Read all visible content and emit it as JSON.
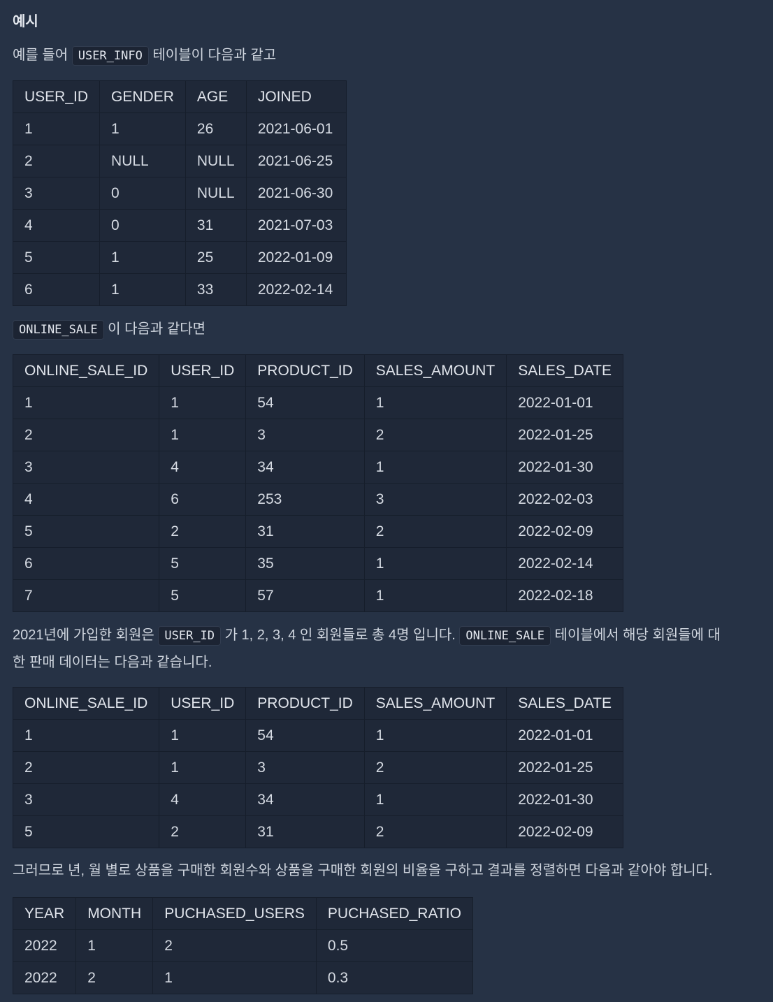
{
  "heading": "예시",
  "intro": {
    "prefix": "예를 들어 ",
    "code": "USER_INFO",
    "suffix": " 테이블이 다음과 같고"
  },
  "user_info": {
    "headers": [
      "USER_ID",
      "GENDER",
      "AGE",
      "JOINED"
    ],
    "rows": [
      [
        "1",
        "1",
        "26",
        "2021-06-01"
      ],
      [
        "2",
        "NULL",
        "NULL",
        "2021-06-25"
      ],
      [
        "3",
        "0",
        "NULL",
        "2021-06-30"
      ],
      [
        "4",
        "0",
        "31",
        "2021-07-03"
      ],
      [
        "5",
        "1",
        "25",
        "2022-01-09"
      ],
      [
        "6",
        "1",
        "33",
        "2022-02-14"
      ]
    ]
  },
  "intro2": {
    "code": "ONLINE_SALE",
    "suffix": " 이 다음과 같다면"
  },
  "online_sale": {
    "headers": [
      "ONLINE_SALE_ID",
      "USER_ID",
      "PRODUCT_ID",
      "SALES_AMOUNT",
      "SALES_DATE"
    ],
    "rows": [
      [
        "1",
        "1",
        "54",
        "1",
        "2022-01-01"
      ],
      [
        "2",
        "1",
        "3",
        "2",
        "2022-01-25"
      ],
      [
        "3",
        "4",
        "34",
        "1",
        "2022-01-30"
      ],
      [
        "4",
        "6",
        "253",
        "3",
        "2022-02-03"
      ],
      [
        "5",
        "2",
        "31",
        "2",
        "2022-02-09"
      ],
      [
        "6",
        "5",
        "35",
        "1",
        "2022-02-14"
      ],
      [
        "7",
        "5",
        "57",
        "1",
        "2022-02-18"
      ]
    ]
  },
  "explain": {
    "t1": "2021년에 가입한 회원은 ",
    "code1": "USER_ID",
    "t2": " 가 1, 2, 3, 4 인 회원들로 총 4명 입니다. ",
    "code2": "ONLINE_SALE",
    "t3": " 테이블에서 해당 회원들에 대",
    "line2": "한 판매 데이터는 다음과 같습니다."
  },
  "filtered_sale": {
    "headers": [
      "ONLINE_SALE_ID",
      "USER_ID",
      "PRODUCT_ID",
      "SALES_AMOUNT",
      "SALES_DATE"
    ],
    "rows": [
      [
        "1",
        "1",
        "54",
        "1",
        "2022-01-01"
      ],
      [
        "2",
        "1",
        "3",
        "2",
        "2022-01-25"
      ],
      [
        "3",
        "4",
        "34",
        "1",
        "2022-01-30"
      ],
      [
        "5",
        "2",
        "31",
        "2",
        "2022-02-09"
      ]
    ]
  },
  "conclusion": "그러므로 년, 월 별로 상품을 구매한 회원수와 상품을 구매한 회원의 비율을 구하고 결과를 정렬하면 다음과 같아야 합니다.",
  "result": {
    "headers": [
      "YEAR",
      "MONTH",
      "PUCHASED_USERS",
      "PUCHASED_RATIO"
    ],
    "rows": [
      [
        "2022",
        "1",
        "2",
        "0.5"
      ],
      [
        "2022",
        "2",
        "1",
        "0.3"
      ]
    ]
  }
}
